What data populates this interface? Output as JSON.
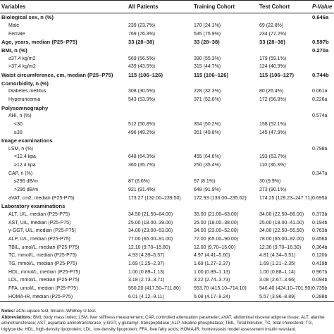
{
  "headers": [
    "Variables",
    "All Patients",
    "Training Cohort",
    "Test Cohort",
    "P-Value"
  ],
  "rows": [
    {
      "k": "sec",
      "cells": [
        "Biological sex, n (%)",
        "",
        "",
        "",
        "0.646a"
      ]
    },
    {
      "k": "i1",
      "cells": [
        "Male",
        "239 (23.7%)",
        "170 (24.1%)",
        "69 (22.8%)",
        ""
      ]
    },
    {
      "k": "i1",
      "cells": [
        "Female",
        "769 (76.3%)",
        "535 (75.9%)",
        "234 (77.2%)",
        ""
      ]
    },
    {
      "k": "sec",
      "cells": [
        "Age, years, median (P25–P75)",
        "33 (28–38)",
        "33 (28–38)",
        "33 (28–38)",
        "0.597b"
      ]
    },
    {
      "k": "sec",
      "cells": [
        "BMI, n (%)",
        "",
        "",
        "",
        "0.270a"
      ]
    },
    {
      "k": "i1",
      "cells": [
        "≤37.4 kg/m2",
        "569 (56.5%)",
        "390 (55.3%)",
        "179 (59.1%)",
        ""
      ]
    },
    {
      "k": "i1",
      "cells": [
        ">37.4 kg/m2",
        "439 (43.5%)",
        "315 (44.7%)",
        "124 (40.9%)",
        ""
      ]
    },
    {
      "k": "sec",
      "cells": [
        "Waist circumference, cm, median (P25–P75)",
        "115 (106–126)",
        "115 (106–126)",
        "115 (106–127)",
        "0.744b"
      ]
    },
    {
      "k": "sec",
      "cells": [
        "Comorbidity, n (%)",
        "",
        "",
        "",
        ""
      ]
    },
    {
      "k": "i1",
      "cells": [
        "Diabetes mellitus",
        "308 (30.6%)",
        "228 (32.3%)",
        "80 (26.4%)",
        "0.061a"
      ]
    },
    {
      "k": "i1",
      "cells": [
        "Hyperuricemia",
        "543 (53.9%)",
        "371 (52.6%)",
        "172 (56.8%)",
        "0.226a"
      ]
    },
    {
      "k": "sec",
      "cells": [
        "Polysomnography",
        "",
        "",
        "",
        ""
      ]
    },
    {
      "k": "i1",
      "cells": [
        "AHI, n (%)",
        "",
        "",
        "",
        "0.574a"
      ]
    },
    {
      "k": "i2",
      "cells": [
        "<30",
        "512 (50.8%)",
        "354 (50.2%)",
        "158 (52.1%)",
        ""
      ]
    },
    {
      "k": "i2",
      "cells": [
        "≥30",
        "496 (49.2%)",
        "351 (49.8%)",
        "145 (47.9%)",
        ""
      ]
    },
    {
      "k": "sec",
      "cells": [
        "Image examinations",
        "",
        "",
        "",
        ""
      ]
    },
    {
      "k": "i1",
      "cells": [
        "LSM, n (%)",
        "",
        "",
        "",
        "0.798a"
      ]
    },
    {
      "k": "i2",
      "cells": [
        "<12.4 kpa",
        "648 (64.3%)",
        "455 (64.6%)",
        "193 (63.7%)",
        ""
      ]
    },
    {
      "k": "i2",
      "cells": [
        "≥12.4 kpa",
        "360 (35.7%)",
        "250 (35.4%)",
        "110 (36.3%)",
        ""
      ]
    },
    {
      "k": "i1",
      "cells": [
        "CAP, n (%)",
        "",
        "",
        "",
        "0.347a"
      ]
    },
    {
      "k": "i2",
      "cells": [
        "≤296 dB/m",
        "87 (8.6%)",
        "57 (8.1%)",
        "30 (9.9%)",
        ""
      ]
    },
    {
      "k": "i2",
      "cells": [
        ">296 dB/m",
        "921 (91.4%)",
        "648 (91.9%)",
        "273 (90.1%)",
        ""
      ]
    },
    {
      "k": "i1",
      "cells": [
        "aVAT, cm2, median (P25-P75)",
        "173.27 (132.00–239.50)",
        "172.93 (133.00–235.62)",
        "174.25 (129.23–247.71)",
        "0.695b"
      ]
    },
    {
      "k": "sec",
      "cells": [
        "Laboratory examinations",
        "",
        "",
        "",
        ""
      ]
    },
    {
      "k": "i1",
      "cells": [
        "ALT, U/L, median (P25-P75)",
        "34.50 (21.50–64.00)",
        "35.00 (21.00–63.00)",
        "34.00 (22.50–66.00)",
        "0.373b"
      ]
    },
    {
      "k": "i1",
      "cells": [
        "AST, U/L, median (P25-P75)",
        "25.00 (18.00–39.00)",
        "25.00 (18.00–38.00)",
        "25.00 (18.00–41.00)",
        "0.194b"
      ]
    },
    {
      "k": "i1",
      "cells": [
        "γ-GGT, U/L, median (P25-P75)",
        "34.00 (23.00–53.00)",
        "34.00 (23.00–52.00)",
        "34.00 (22.50–55.50)",
        "0.763b"
      ]
    },
    {
      "k": "i1",
      "cells": [
        "ALP, U/L, median (P25-P75)",
        "77.00 (65.00–91.00)",
        "77.00 (65.00–90.00)",
        "78.00 (65.00–92.00)",
        "0.456b"
      ]
    },
    {
      "k": "i1",
      "cells": [
        "TBIL, umol/L, median (P25-P75)",
        "12.10 (9.70–15.80)",
        "12.00 (9.70–15.00)",
        "12.30 (9.70–16.30)",
        "0.364b"
      ]
    },
    {
      "k": "i1",
      "cells": [
        "TC, mmol/L, median (P25-P75)",
        "4.93 (4.39–5.57)",
        "4.97 (4.41–5.60)",
        "4.81 (4.34–5.51)",
        "0.120b"
      ]
    },
    {
      "k": "i1",
      "cells": [
        "TG, mmol/L, median (P25-P75)",
        "1.69 (1.25–2.37)",
        "1.69 (1.27–2.37)",
        "1.69 (1.21–2.35)",
        "0.419b"
      ]
    },
    {
      "k": "i1",
      "cells": [
        "HDL, mmol/L, median (P25-P75)",
        "1.00 (0.89–1.13)",
        "1.00 (0.89–1.13)",
        "1.00 (0.88–1.14)",
        "0.967b"
      ]
    },
    {
      "k": "i1",
      "cells": [
        "LDL, mmol/L, median (P25-P75)",
        "3.18 (2.73–3.71)",
        "3.22 (2.74–3.73)",
        "3.08 (2.67–3.66)",
        "0.094b"
      ]
    },
    {
      "k": "i1",
      "cells": [
        "FFA, umol/L, median (P25-P75)",
        "550.20 (417.50–711.80)",
        "553.70 (415.10–714.10)",
        "546.40 (424.10–701.90)",
        "0.735b"
      ]
    },
    {
      "k": "i1",
      "cells": [
        "HOMA-IR, median (P25-P75)",
        "6.01 (4.12–9.11)",
        "6.08 (4.17–9.24)",
        "5.57 (3.96–8.89)",
        "0.288b"
      ]
    }
  ],
  "notes": {
    "notes_label": "Notes:",
    "notes_text": " aChi-square test, bmann–Whitney U-test.",
    "abbr_label": "Abbreviations:",
    "abbr_text": " BMI, body mass index; LSM, liver stiffness measurement; CAP, controlled attenuation parameter; aVAT, abdominal visceral adipose tissue; ALT, alanine aminotransferase; AST, aspartate aminotransferase; γ-GGT, γ-glutamyl -transpeptidase; ALP, Alkaline phosphatase; TBIL, Total bilirubin; TC, total cholesterol; TG, triglyceride; HDL, high-density lipoprotein; LDL, low-density lipoprotein; FFA, free fatty acids; HOMA-IR, homeostasis model assessment insulin resistant."
  }
}
